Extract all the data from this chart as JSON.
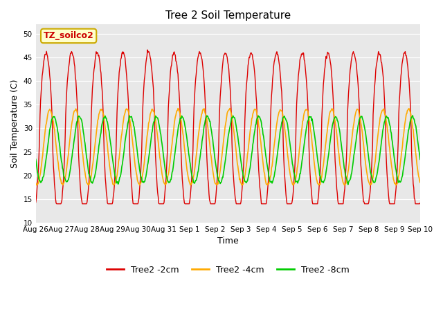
{
  "title": "Tree 2 Soil Temperature",
  "xlabel": "Time",
  "ylabel": "Soil Temperature (C)",
  "ylim": [
    10,
    52
  ],
  "yticks": [
    10,
    15,
    20,
    25,
    30,
    35,
    40,
    45,
    50
  ],
  "bg_color": "#e8e8e8",
  "annotation_text": "TZ_soilco2",
  "annotation_bg": "#ffffcc",
  "annotation_border": "#ccaa00",
  "legend_labels": [
    "Tree2 -2cm",
    "Tree2 -4cm",
    "Tree2 -8cm"
  ],
  "legend_colors": [
    "#dd0000",
    "#ffaa00",
    "#00cc00"
  ],
  "line_colors": [
    "#dd0000",
    "#ffaa00",
    "#00cc00"
  ],
  "x_tick_labels": [
    "Aug 26",
    "Aug 27",
    "Aug 28",
    "Aug 29",
    "Aug 30",
    "Aug 31",
    "Sep 1",
    "Sep 2",
    "Sep 3",
    "Sep 4",
    "Sep 5",
    "Sep 6",
    "Sep 7",
    "Sep 8",
    "Sep 9",
    "Sep 10"
  ],
  "days": 15
}
